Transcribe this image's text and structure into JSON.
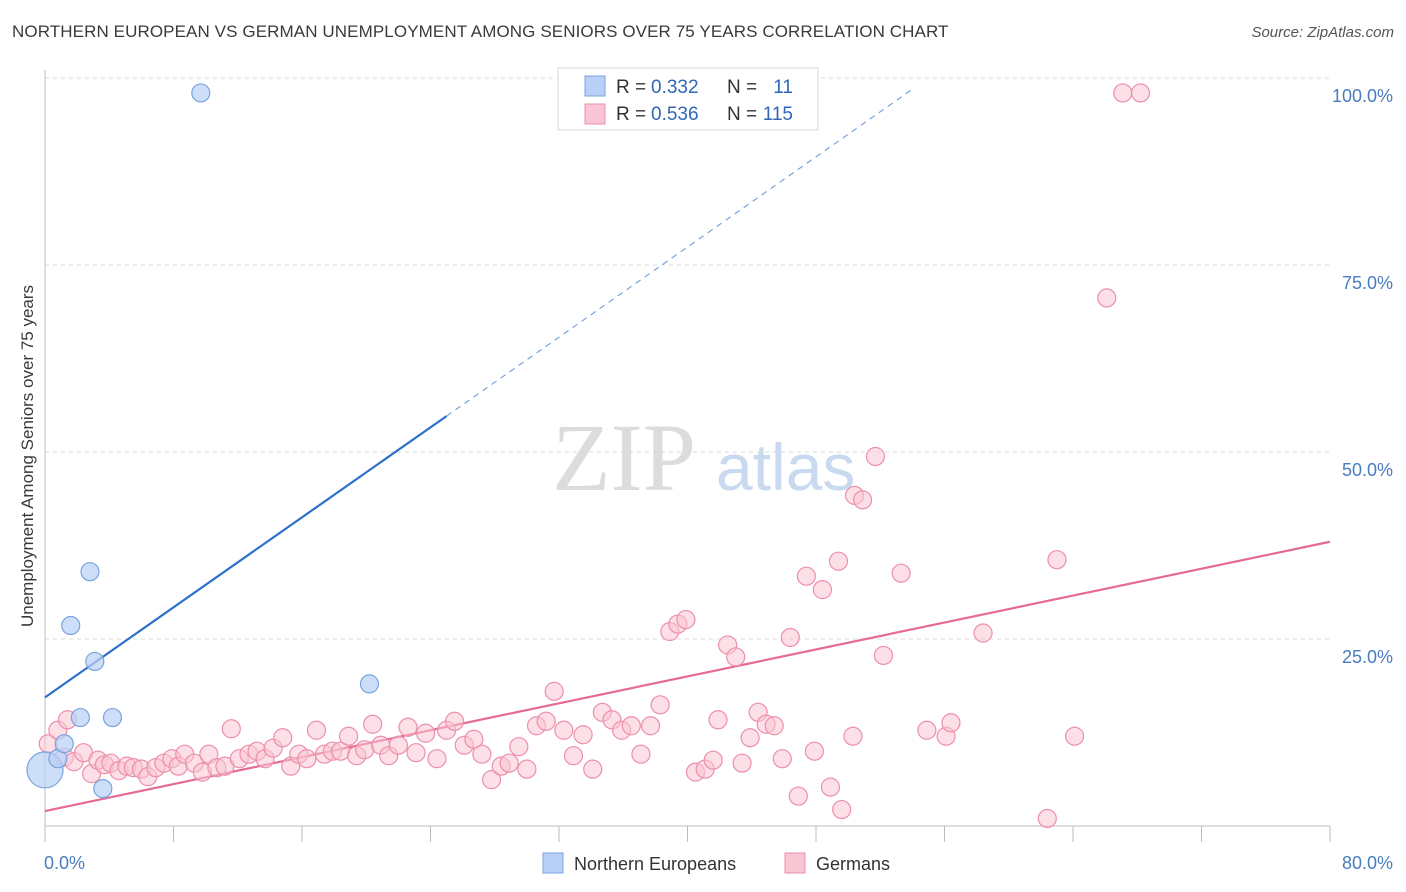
{
  "header": {
    "title": "NORTHERN EUROPEAN VS GERMAN UNEMPLOYMENT AMONG SENIORS OVER 75 YEARS CORRELATION CHART",
    "source": "Source: ZipAtlas.com"
  },
  "watermark": {
    "zip": "ZIP",
    "atlas": "atlas"
  },
  "colors": {
    "blue_fill": "#b8d0f5",
    "blue_stroke": "#7aa3df",
    "blue_line": "#2c6fcc",
    "pink_fill": "#f9c4d4",
    "pink_stroke": "#ec8fab",
    "pink_line": "#e56b94",
    "grid": "#d9d9d9",
    "tick_text": "#4a7cc0"
  },
  "chart_data": {
    "type": "scatter",
    "title": "NORTHERN EUROPEAN VS GERMAN UNEMPLOYMENT AMONG SENIORS OVER 75 YEARS CORRELATION CHART",
    "xlabel": "",
    "ylabel": "Unemployment Among Seniors over 75 years",
    "xlim": [
      0,
      80
    ],
    "ylim": [
      0,
      100
    ],
    "x_tick_labels": [
      "0.0%",
      "80.0%"
    ],
    "y_tick_labels": [
      "25.0%",
      "50.0%",
      "75.0%",
      "100.0%"
    ],
    "y_ticks": [
      25,
      50,
      75,
      100
    ],
    "legend_position": "top-center",
    "legend_stats": [
      {
        "r_label": "R =",
        "r_value": "0.332",
        "n_label": "N =",
        "n_value": "11"
      },
      {
        "r_label": "R =",
        "r_value": "0.536",
        "n_label": "N =",
        "n_value": "115"
      }
    ],
    "series": [
      {
        "name": "Northern Europeans",
        "color": "#b8d0f5",
        "trend": {
          "x_solid": [
            0,
            25
          ],
          "y_solid": [
            17.2,
            54.8
          ],
          "x_dashed": [
            25,
            54
          ],
          "y_dashed": [
            54.8,
            98.5
          ]
        },
        "points": [
          {
            "x": 0.0,
            "y": 7.5,
            "r": 18
          },
          {
            "x": 0.8,
            "y": 9.0,
            "r": 9
          },
          {
            "x": 1.2,
            "y": 11.0,
            "r": 9
          },
          {
            "x": 1.6,
            "y": 26.8,
            "r": 9
          },
          {
            "x": 2.2,
            "y": 14.5,
            "r": 9
          },
          {
            "x": 2.8,
            "y": 34.0,
            "r": 9
          },
          {
            "x": 3.1,
            "y": 22.0,
            "r": 9
          },
          {
            "x": 3.6,
            "y": 5.0,
            "r": 9
          },
          {
            "x": 4.2,
            "y": 14.5,
            "r": 9
          },
          {
            "x": 9.7,
            "y": 98.0,
            "r": 9
          },
          {
            "x": 20.2,
            "y": 19.0,
            "r": 9
          }
        ]
      },
      {
        "name": "Germans",
        "color": "#f9c4d4",
        "trend": {
          "x_solid": [
            0,
            80
          ],
          "y_solid": [
            2.0,
            38.0
          ]
        },
        "points": [
          {
            "x": 0.2,
            "y": 11.0
          },
          {
            "x": 0.8,
            "y": 12.8
          },
          {
            "x": 1.2,
            "y": 9.2
          },
          {
            "x": 1.4,
            "y": 14.2
          },
          {
            "x": 1.8,
            "y": 8.6
          },
          {
            "x": 2.4,
            "y": 9.8
          },
          {
            "x": 2.9,
            "y": 7.0
          },
          {
            "x": 3.3,
            "y": 8.8
          },
          {
            "x": 3.7,
            "y": 8.2
          },
          {
            "x": 4.1,
            "y": 8.4
          },
          {
            "x": 4.6,
            "y": 7.4
          },
          {
            "x": 5.1,
            "y": 8.0
          },
          {
            "x": 5.5,
            "y": 7.8
          },
          {
            "x": 6.0,
            "y": 7.6
          },
          {
            "x": 6.4,
            "y": 6.6
          },
          {
            "x": 6.9,
            "y": 7.8
          },
          {
            "x": 7.4,
            "y": 8.4
          },
          {
            "x": 7.9,
            "y": 9.0
          },
          {
            "x": 8.3,
            "y": 8.0
          },
          {
            "x": 8.7,
            "y": 9.6
          },
          {
            "x": 9.3,
            "y": 8.4
          },
          {
            "x": 9.8,
            "y": 7.2
          },
          {
            "x": 10.2,
            "y": 9.6
          },
          {
            "x": 10.7,
            "y": 7.8
          },
          {
            "x": 11.2,
            "y": 8.0
          },
          {
            "x": 11.6,
            "y": 13.0
          },
          {
            "x": 12.1,
            "y": 9.0
          },
          {
            "x": 12.7,
            "y": 9.6
          },
          {
            "x": 13.2,
            "y": 10.0
          },
          {
            "x": 13.7,
            "y": 9.0
          },
          {
            "x": 14.2,
            "y": 10.4
          },
          {
            "x": 14.8,
            "y": 11.8
          },
          {
            "x": 15.3,
            "y": 8.0
          },
          {
            "x": 15.8,
            "y": 9.6
          },
          {
            "x": 16.3,
            "y": 9.0
          },
          {
            "x": 16.9,
            "y": 12.8
          },
          {
            "x": 17.4,
            "y": 9.6
          },
          {
            "x": 17.9,
            "y": 10.0
          },
          {
            "x": 18.4,
            "y": 10.0
          },
          {
            "x": 18.9,
            "y": 12.0
          },
          {
            "x": 19.4,
            "y": 9.4
          },
          {
            "x": 19.9,
            "y": 10.2
          },
          {
            "x": 20.4,
            "y": 13.6
          },
          {
            "x": 20.9,
            "y": 10.8
          },
          {
            "x": 21.4,
            "y": 9.4
          },
          {
            "x": 22.0,
            "y": 10.8
          },
          {
            "x": 22.6,
            "y": 13.2
          },
          {
            "x": 23.1,
            "y": 9.8
          },
          {
            "x": 23.7,
            "y": 12.4
          },
          {
            "x": 24.4,
            "y": 9.0
          },
          {
            "x": 25.0,
            "y": 12.8
          },
          {
            "x": 25.5,
            "y": 14.0
          },
          {
            "x": 26.1,
            "y": 10.8
          },
          {
            "x": 26.7,
            "y": 11.6
          },
          {
            "x": 27.2,
            "y": 9.6
          },
          {
            "x": 27.8,
            "y": 6.2
          },
          {
            "x": 28.4,
            "y": 8.0
          },
          {
            "x": 28.9,
            "y": 8.4
          },
          {
            "x": 29.5,
            "y": 10.6
          },
          {
            "x": 30.0,
            "y": 7.6
          },
          {
            "x": 30.6,
            "y": 13.4
          },
          {
            "x": 31.2,
            "y": 14.0
          },
          {
            "x": 31.7,
            "y": 18.0
          },
          {
            "x": 32.3,
            "y": 12.8
          },
          {
            "x": 32.9,
            "y": 9.4
          },
          {
            "x": 33.5,
            "y": 12.2
          },
          {
            "x": 34.1,
            "y": 7.6
          },
          {
            "x": 34.7,
            "y": 15.2
          },
          {
            "x": 35.3,
            "y": 14.2
          },
          {
            "x": 35.9,
            "y": 12.8
          },
          {
            "x": 36.5,
            "y": 13.4
          },
          {
            "x": 37.1,
            "y": 9.6
          },
          {
            "x": 37.7,
            "y": 13.4
          },
          {
            "x": 38.3,
            "y": 16.2
          },
          {
            "x": 38.9,
            "y": 26.0
          },
          {
            "x": 39.4,
            "y": 27.0
          },
          {
            "x": 39.9,
            "y": 27.6
          },
          {
            "x": 40.5,
            "y": 7.2
          },
          {
            "x": 41.1,
            "y": 7.6
          },
          {
            "x": 41.6,
            "y": 8.8
          },
          {
            "x": 41.9,
            "y": 14.2
          },
          {
            "x": 42.5,
            "y": 24.2
          },
          {
            "x": 43.0,
            "y": 22.6
          },
          {
            "x": 43.4,
            "y": 8.4
          },
          {
            "x": 43.9,
            "y": 11.8
          },
          {
            "x": 44.4,
            "y": 15.2
          },
          {
            "x": 44.9,
            "y": 13.6
          },
          {
            "x": 45.4,
            "y": 13.4
          },
          {
            "x": 45.9,
            "y": 9.0
          },
          {
            "x": 46.4,
            "y": 25.2
          },
          {
            "x": 46.9,
            "y": 4.0
          },
          {
            "x": 47.4,
            "y": 33.4
          },
          {
            "x": 47.9,
            "y": 10.0
          },
          {
            "x": 48.4,
            "y": 31.6
          },
          {
            "x": 48.9,
            "y": 5.2
          },
          {
            "x": 49.4,
            "y": 35.4
          },
          {
            "x": 49.6,
            "y": 2.2
          },
          {
            "x": 50.3,
            "y": 12.0
          },
          {
            "x": 50.4,
            "y": 44.2
          },
          {
            "x": 50.9,
            "y": 43.6
          },
          {
            "x": 51.7,
            "y": 49.4
          },
          {
            "x": 52.2,
            "y": 22.8
          },
          {
            "x": 53.3,
            "y": 33.8
          },
          {
            "x": 54.9,
            "y": 12.8
          },
          {
            "x": 56.1,
            "y": 12.0
          },
          {
            "x": 56.4,
            "y": 13.8
          },
          {
            "x": 58.4,
            "y": 25.8
          },
          {
            "x": 62.4,
            "y": 1.0
          },
          {
            "x": 63.0,
            "y": 35.6
          },
          {
            "x": 64.1,
            "y": 12.0
          },
          {
            "x": 66.1,
            "y": 70.6
          },
          {
            "x": 67.1,
            "y": 98.0
          },
          {
            "x": 68.2,
            "y": 98.0
          }
        ]
      }
    ]
  }
}
